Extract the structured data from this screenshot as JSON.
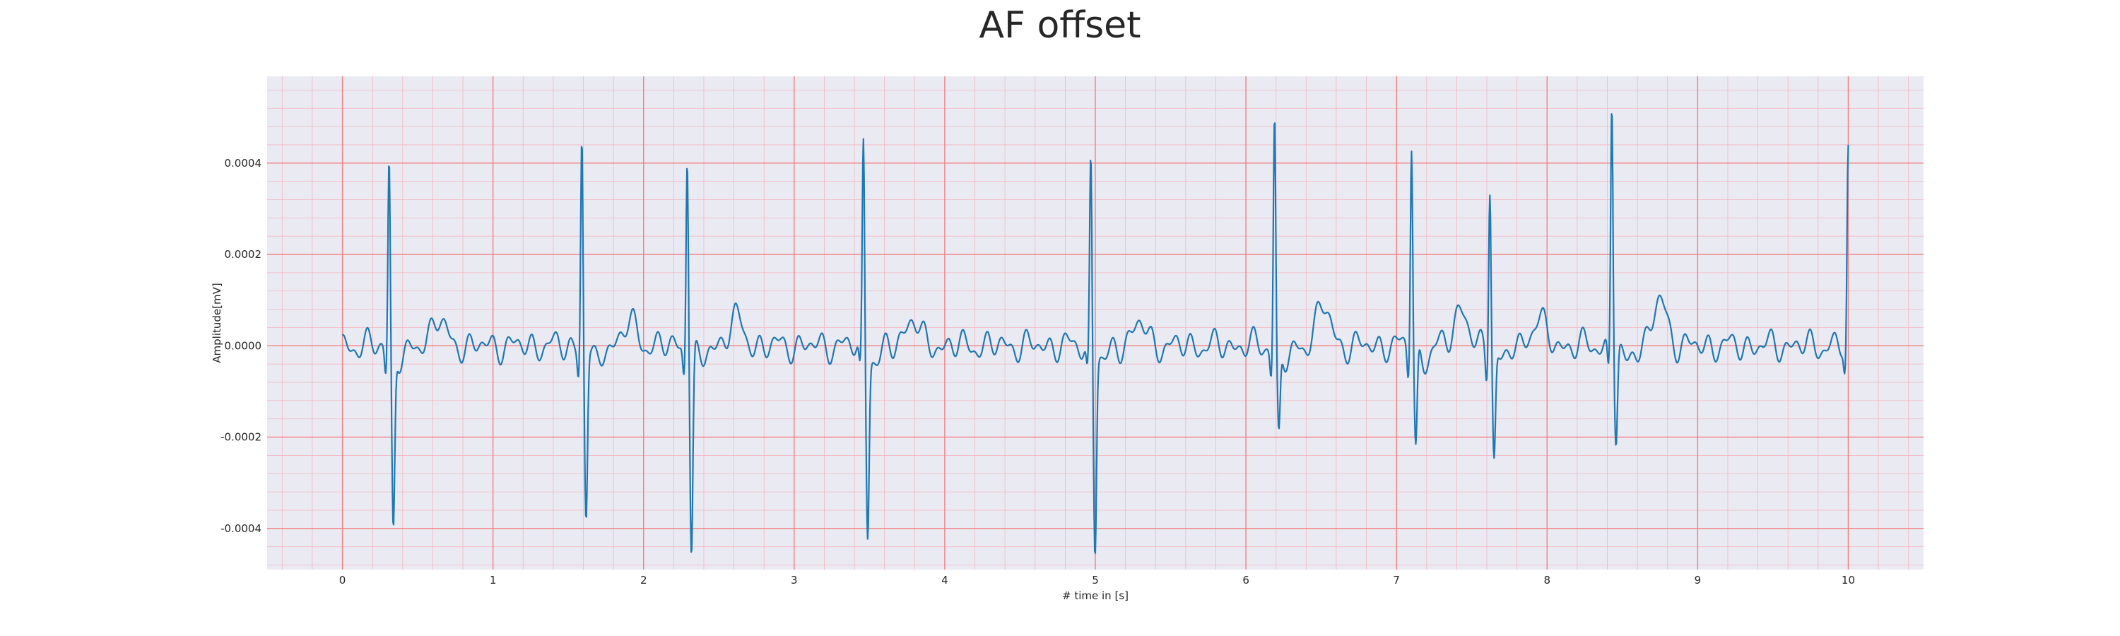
{
  "chart_data": {
    "type": "line",
    "title": "AF offset",
    "xlabel": "# time in [s]",
    "ylabel": "Amplitude[mV]",
    "xlim": [
      -0.5,
      10.5
    ],
    "ylim": [
      -0.00049,
      0.00059
    ],
    "xticks": [
      0,
      1,
      2,
      3,
      4,
      5,
      6,
      7,
      8,
      9,
      10
    ],
    "xtick_labels": [
      "0",
      "1",
      "2",
      "3",
      "4",
      "5",
      "6",
      "7",
      "8",
      "9",
      "10"
    ],
    "yticks": [
      0.0004,
      0.0002,
      0.0,
      -0.0002,
      -0.0004
    ],
    "ytick_labels": [
      "0.0004",
      "0.0002",
      "0.0000",
      "-0.0002",
      "-0.0004"
    ],
    "grid": {
      "major": true,
      "minor": true
    },
    "colors": {
      "line": "#1f77b4",
      "major_grid": "#f08080",
      "minor_grid": "#f4b6bf",
      "plot_background": "#eaeaf2"
    },
    "beats": [
      {
        "t": 0.31,
        "peak": 0.000412,
        "trough": -0.000395,
        "twave": 6e-05
      },
      {
        "t": 1.59,
        "peak": 0.000462,
        "trough": -0.000368,
        "twave": 5e-05
      },
      {
        "t": 2.29,
        "peak": 0.000435,
        "trough": -0.00044,
        "twave": 6e-05
      },
      {
        "t": 3.46,
        "peak": 0.000447,
        "trough": -0.000392,
        "twave": 6e-05
      },
      {
        "t": 4.97,
        "peak": 0.00041,
        "trough": -0.000435,
        "twave": 5e-05
      },
      {
        "t": 6.19,
        "peak": 0.000505,
        "trough": -0.000195,
        "twave": 9e-05
      },
      {
        "t": 7.1,
        "peak": 0.00046,
        "trough": -0.00022,
        "twave": 8e-05
      },
      {
        "t": 7.62,
        "peak": 0.000365,
        "trough": -0.000235,
        "twave": 6e-05
      },
      {
        "t": 8.43,
        "peak": 0.000545,
        "trough": -0.0002,
        "twave": 0.0001
      },
      {
        "t": 10.0,
        "peak": 0.00042,
        "trough": -0.0001,
        "twave": 0.0
      }
    ],
    "baseline_noise_amplitude": 2e-05,
    "t_range": [
      0,
      10
    ],
    "sample_step": 0.004
  }
}
